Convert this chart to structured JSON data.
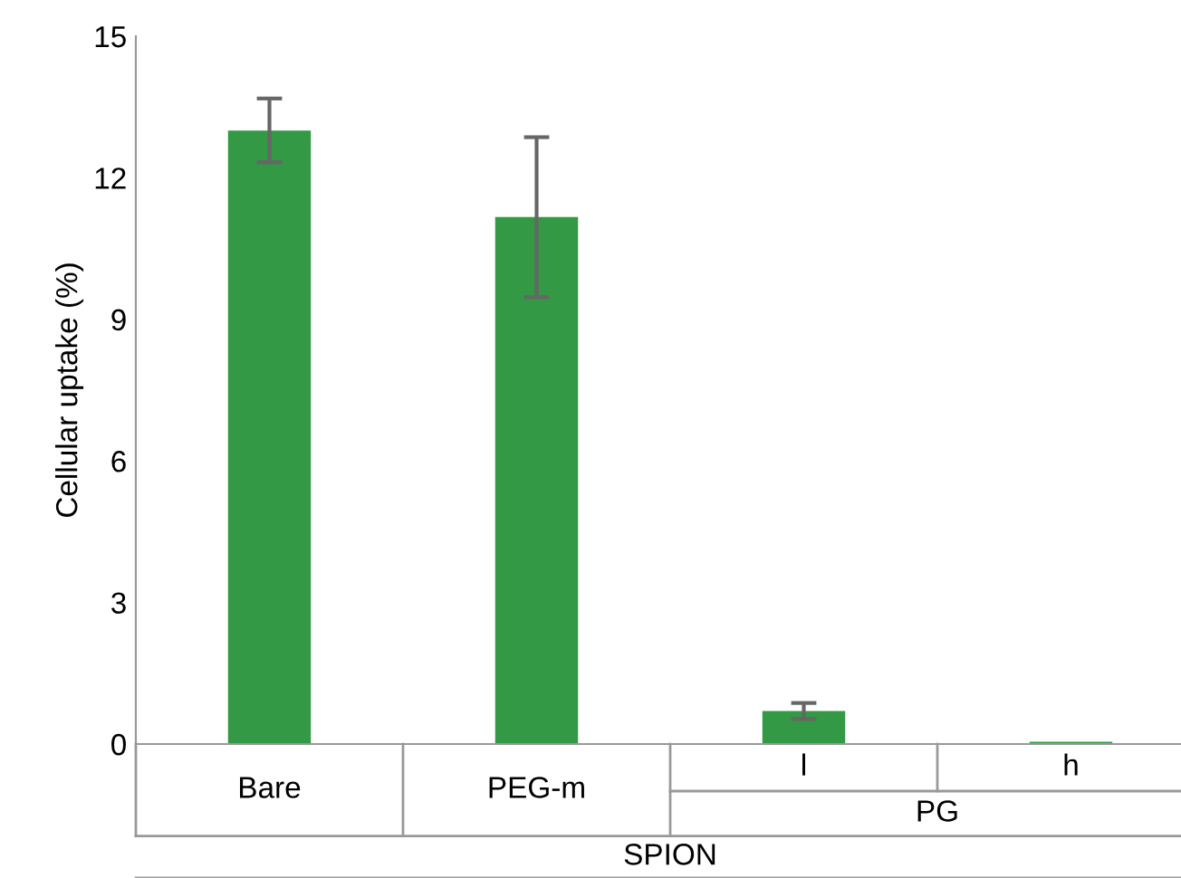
{
  "chart_data": {
    "type": "bar",
    "ylabel": "Cellular uptake (%)",
    "categories": [
      "Bare",
      "PEG-m",
      "l",
      "h"
    ],
    "values": [
      13.0,
      11.17,
      0.7,
      0.05
    ],
    "errors": [
      [
        12.33,
        13.68
      ],
      [
        9.47,
        12.86
      ],
      [
        0.53,
        0.87
      ],
      null
    ],
    "color": "#339944",
    "ylim": [
      0,
      15
    ],
    "yticks": [
      0,
      3,
      6,
      9,
      12,
      15
    ],
    "grid": false,
    "legend": false,
    "annotations": [
      "PG",
      "SPION"
    ]
  }
}
